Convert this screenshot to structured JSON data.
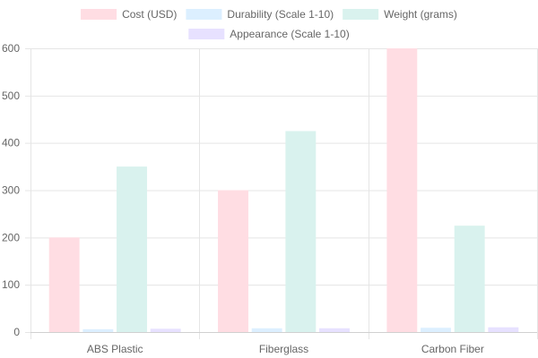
{
  "chart_data": {
    "type": "bar",
    "categories": [
      "ABS Plastic",
      "Fiberglass",
      "Carbon Fiber"
    ],
    "series": [
      {
        "name": "Cost (USD)",
        "values": [
          200,
          300,
          600
        ],
        "color": "#ffdde3",
        "border": "#ffb1c1"
      },
      {
        "name": "Durability (Scale 1-10)",
        "values": [
          6,
          8,
          9
        ],
        "color": "#dcefff",
        "border": "#9ad0f5"
      },
      {
        "name": "Weight (grams)",
        "values": [
          350,
          425,
          225
        ],
        "color": "#d9f2ee",
        "border": "#a5dfdf"
      },
      {
        "name": "Appearance (Scale 1-10)",
        "values": [
          7,
          8,
          10
        ],
        "color": "#e7e1ff",
        "border": "#ccb2ff"
      }
    ],
    "ylim": [
      0,
      600
    ],
    "yticks": [
      0,
      100,
      200,
      300,
      400,
      500,
      600
    ],
    "grid": true,
    "legend": "top"
  }
}
